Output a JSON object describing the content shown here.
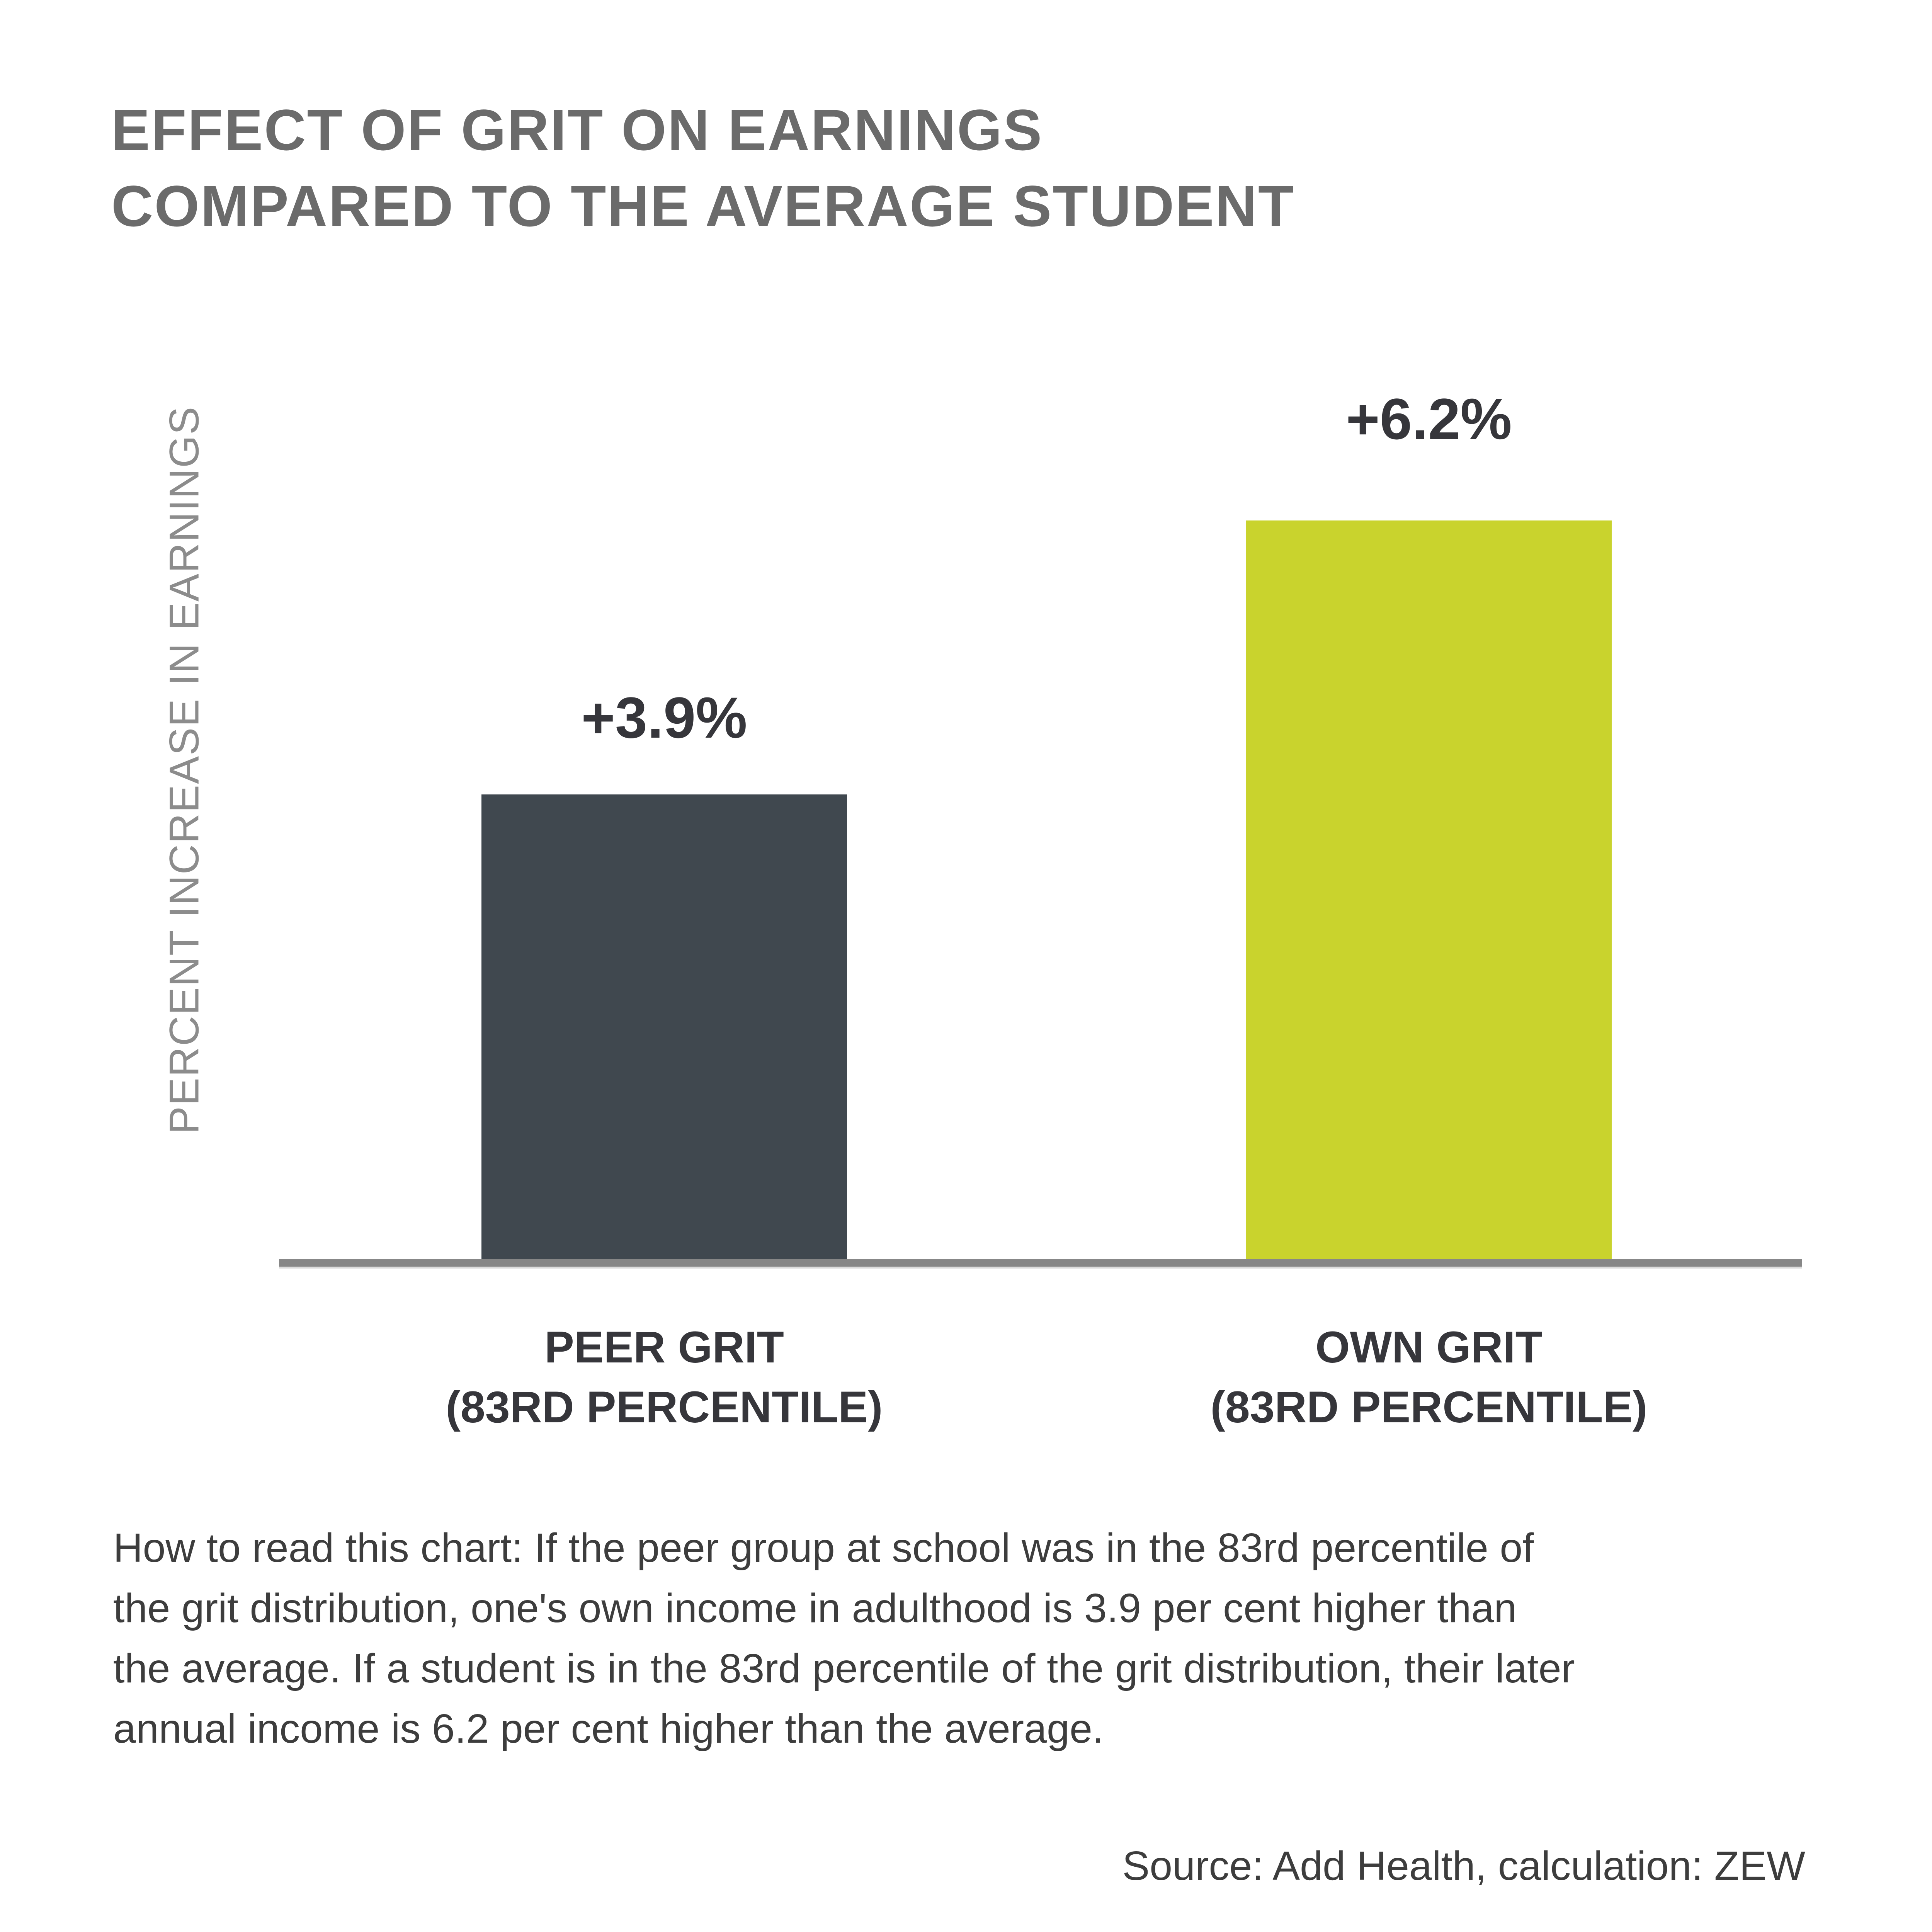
{
  "header": {
    "title_line1": "EFFECT OF GRIT ON EARNINGS",
    "title_line2": "COMPARED TO THE AVERAGE STUDENT",
    "title_color": "#6b6b6b"
  },
  "chart_data": {
    "type": "bar",
    "title": "EFFECT OF GRIT ON EARNINGS COMPARED TO THE AVERAGE STUDENT",
    "xlabel": "",
    "ylabel": "PERCENT INCREASE IN EARNINGS",
    "categories": [
      [
        "PEER GRIT",
        "(83RD PERCENTILE)"
      ],
      [
        "OWN GRIT",
        "(83RD PERCENTILE)"
      ]
    ],
    "values": [
      3.9,
      6.2
    ],
    "value_labels": [
      "+3.9%",
      "+6.2%"
    ],
    "bar_colors": [
      "#40484f",
      "#c9d32d"
    ],
    "axis_color": "#878787",
    "ylim": [
      0,
      6.6
    ],
    "grid": false,
    "legend": false,
    "unit": "percent increase in earnings vs. average student"
  },
  "caption": {
    "lines": [
      "How to read this chart: If the peer group at school was in the 83rd percentile of",
      "the grit distribution, one's own income in adulthood is 3.9 per cent higher than",
      "the average. If a student is in the 83rd percentile of the grit distribution, their later",
      "annual income is 6.2 per cent higher than the average."
    ]
  },
  "source": {
    "text": "Source: Add Health, calculation: ZEW"
  }
}
